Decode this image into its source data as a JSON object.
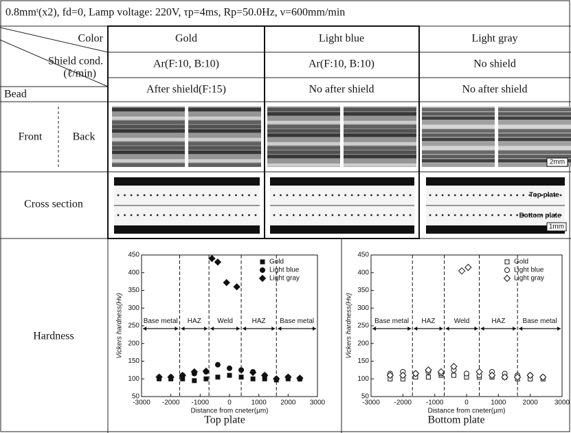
{
  "header": {
    "title": "0.8mmᵗ(x2), fd=0, Lamp voltage: 220V, τp=4ms, Rp=50.0Hz, ν=600mm/min"
  },
  "table": {
    "corner": {
      "color": "Color",
      "shield": "Shield cond.",
      "shield_unit": "(ℓ/min)",
      "bead": "Bead"
    },
    "columns": [
      {
        "color": "Gold",
        "shield": "Ar(F:10, B:10)",
        "bead": "After shield(F:15)"
      },
      {
        "color": "Light blue",
        "shield": "Ar(F:10, B:10)",
        "bead": "No after shield"
      },
      {
        "color": "Light gray",
        "shield": "No shield",
        "bead": "No after shield"
      }
    ],
    "rows": {
      "front": "Front",
      "back": "Back",
      "cross_section": "Cross section",
      "hardness": "Hardness"
    },
    "photo_labels": {
      "scale_front": "2mm",
      "top": "Top plate",
      "bottom": "Bottom plate",
      "scale_cross": "1mm"
    }
  },
  "chart_data": [
    {
      "type": "scatter",
      "caption": "Top plate",
      "xlabel": "Distance from cneter(μm)",
      "ylabel": "Vickers hardness(Hv)",
      "xlim": [
        -3000,
        3000
      ],
      "xticks": [
        -3000,
        -2000,
        -1000,
        0,
        1000,
        2000,
        3000
      ],
      "ylim": [
        50,
        450
      ],
      "yticks": [
        50,
        100,
        150,
        200,
        250,
        300,
        350,
        400,
        450
      ],
      "boundaries": [
        -1700,
        -700,
        400,
        1600
      ],
      "regions": [
        "Base metal",
        "HAZ",
        "Weld",
        "HAZ",
        "Base metal"
      ],
      "legend": "upper right",
      "series": [
        {
          "name": "Gold",
          "color": "#111",
          "marker": "square",
          "filled": true,
          "x": [
            -2400,
            -2000,
            -1600,
            -1200,
            -800,
            -400,
            0,
            400,
            800,
            1200,
            1600,
            2000,
            2400
          ],
          "values": [
            100,
            100,
            100,
            95,
            100,
            105,
            110,
            105,
            100,
            100,
            97,
            100,
            100
          ]
        },
        {
          "name": "Light blue",
          "color": "#111",
          "marker": "circle",
          "filled": true,
          "x": [
            -2400,
            -2000,
            -1600,
            -1200,
            -800,
            -400,
            0,
            400,
            800,
            1200,
            1600,
            2000,
            2400
          ],
          "values": [
            105,
            105,
            110,
            115,
            120,
            140,
            130,
            125,
            120,
            110,
            100,
            105,
            100
          ]
        },
        {
          "name": "Light gray",
          "color": "#111",
          "marker": "diamond",
          "filled": true,
          "x": [
            -2400,
            -2000,
            -1600,
            -1200,
            -800,
            -600,
            -400,
            -100,
            250,
            800,
            1200,
            1600,
            2000,
            2400
          ],
          "values": [
            105,
            105,
            110,
            120,
            122,
            440,
            430,
            372,
            360,
            118,
            110,
            100,
            105,
            102
          ]
        }
      ]
    },
    {
      "type": "scatter",
      "caption": "Bottom plate",
      "xlabel": "Distance from cneter(μm)",
      "ylabel": "Vickers hardness(Hv)",
      "xlim": [
        -3000,
        3000
      ],
      "xticks": [
        -3000,
        -2000,
        -1000,
        0,
        1000,
        2000,
        3000
      ],
      "ylim": [
        50,
        450
      ],
      "yticks": [
        50,
        100,
        150,
        200,
        250,
        300,
        350,
        400,
        450
      ],
      "boundaries": [
        -1700,
        -700,
        400,
        1600
      ],
      "regions": [
        "Base metal",
        "HAZ",
        "Weld",
        "HAZ",
        "Base metal"
      ],
      "legend": "upper right",
      "series": [
        {
          "name": "Gold",
          "color": "#111",
          "marker": "square",
          "filled": false,
          "x": [
            -2400,
            -2000,
            -1600,
            -1200,
            -800,
            -400,
            0,
            400,
            800,
            1200,
            1600,
            2000,
            2400
          ],
          "values": [
            100,
            100,
            105,
            105,
            110,
            110,
            105,
            105,
            105,
            105,
            100,
            100,
            100
          ]
        },
        {
          "name": "Light blue",
          "color": "#111",
          "marker": "circle",
          "filled": false,
          "x": [
            -2400,
            -2000,
            -1600,
            -1200,
            -800,
            -400,
            0,
            400,
            800,
            1200,
            1600,
            2000,
            2400
          ],
          "values": [
            115,
            120,
            115,
            120,
            115,
            125,
            115,
            110,
            120,
            115,
            110,
            110,
            105
          ]
        },
        {
          "name": "Light gray",
          "color": "#111",
          "marker": "diamond",
          "filled": false,
          "x": [
            -2400,
            -2000,
            -1600,
            -1200,
            -800,
            -400,
            -150,
            50,
            400,
            800,
            1200,
            1600,
            2000,
            2400
          ],
          "values": [
            110,
            110,
            115,
            125,
            120,
            135,
            405,
            415,
            120,
            110,
            105,
            105,
            110,
            105
          ]
        }
      ]
    }
  ]
}
